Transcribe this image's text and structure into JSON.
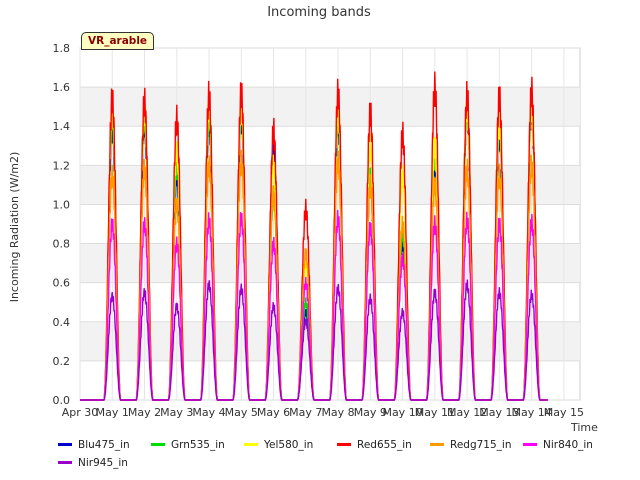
{
  "badge": "VR_arable",
  "chart_data": {
    "type": "line",
    "title": "Incoming bands",
    "xlabel": "Time",
    "ylabel": "Incoming Radiation (W/m2)",
    "ylim": [
      0,
      1.8
    ],
    "xlim": [
      0,
      15.5
    ],
    "yticks": [
      0.0,
      0.2,
      0.4,
      0.6,
      0.8,
      1.0,
      1.2,
      1.4,
      1.6,
      1.8
    ],
    "ytick_labels": [
      "0.0",
      "0.2",
      "0.4",
      "0.6",
      "0.8",
      "1.0",
      "1.2",
      "1.4",
      "1.6",
      "1.8"
    ],
    "xticks": [
      0,
      1,
      2,
      3,
      4,
      5,
      6,
      7,
      8,
      9,
      10,
      11,
      12,
      13,
      14,
      15
    ],
    "xtick_labels": [
      "Apr 30",
      "May 1",
      "May 2",
      "May 3",
      "May 4",
      "May 5",
      "May 6",
      "May 7",
      "May 8",
      "May 9",
      "May 10",
      "May 11",
      "May 12",
      "May 13",
      "May 14",
      "May 15"
    ],
    "grid": true,
    "legend_position": "bottom",
    "x_unit": "days since Apr 30",
    "day_peaks": {
      "day": [
        1,
        2,
        3,
        4,
        5,
        6,
        7,
        8,
        9,
        10,
        11,
        12,
        13,
        14
      ],
      "note": "approximate daily peak values per band"
    },
    "series": [
      {
        "name": "Blu475_in",
        "color": "#0000cc",
        "peaks": [
          1.4,
          1.42,
          1.15,
          1.42,
          1.45,
          1.3,
          0.45,
          1.42,
          1.1,
          0.8,
          1.2,
          1.48,
          1.35,
          1.48
        ]
      },
      {
        "name": "Grn535_in",
        "color": "#00dd00",
        "peaks": [
          1.45,
          1.45,
          1.2,
          1.45,
          1.48,
          1.05,
          0.5,
          1.45,
          1.15,
          0.85,
          1.25,
          1.48,
          1.4,
          1.5
        ]
      },
      {
        "name": "Yel580_in",
        "color": "#ffff00",
        "peaks": [
          1.48,
          1.48,
          1.28,
          1.5,
          1.5,
          1.2,
          0.7,
          1.48,
          1.3,
          1.15,
          1.3,
          1.5,
          1.42,
          1.5
        ]
      },
      {
        "name": "Red655_in",
        "color": "#ff0000",
        "peaks": [
          1.54,
          1.53,
          1.44,
          1.56,
          1.57,
          1.38,
          0.98,
          1.57,
          1.47,
          1.36,
          1.6,
          1.56,
          1.55,
          1.58
        ]
      },
      {
        "name": "Redg715_in",
        "color": "#ff9900",
        "peaks": [
          1.15,
          1.18,
          1.0,
          1.2,
          1.22,
          1.05,
          0.75,
          1.22,
          1.1,
          0.9,
          1.1,
          1.18,
          1.15,
          1.2
        ]
      },
      {
        "name": "Nir840_in",
        "color": "#ff00ff",
        "peaks": [
          0.9,
          0.9,
          0.8,
          0.92,
          0.93,
          0.8,
          0.6,
          0.93,
          0.88,
          0.72,
          0.9,
          0.92,
          0.9,
          0.91
        ]
      },
      {
        "name": "Nir945_in",
        "color": "#9900cc",
        "peaks": [
          0.53,
          0.55,
          0.48,
          0.59,
          0.57,
          0.48,
          0.4,
          0.57,
          0.52,
          0.45,
          0.55,
          0.59,
          0.55,
          0.54
        ]
      }
    ]
  }
}
